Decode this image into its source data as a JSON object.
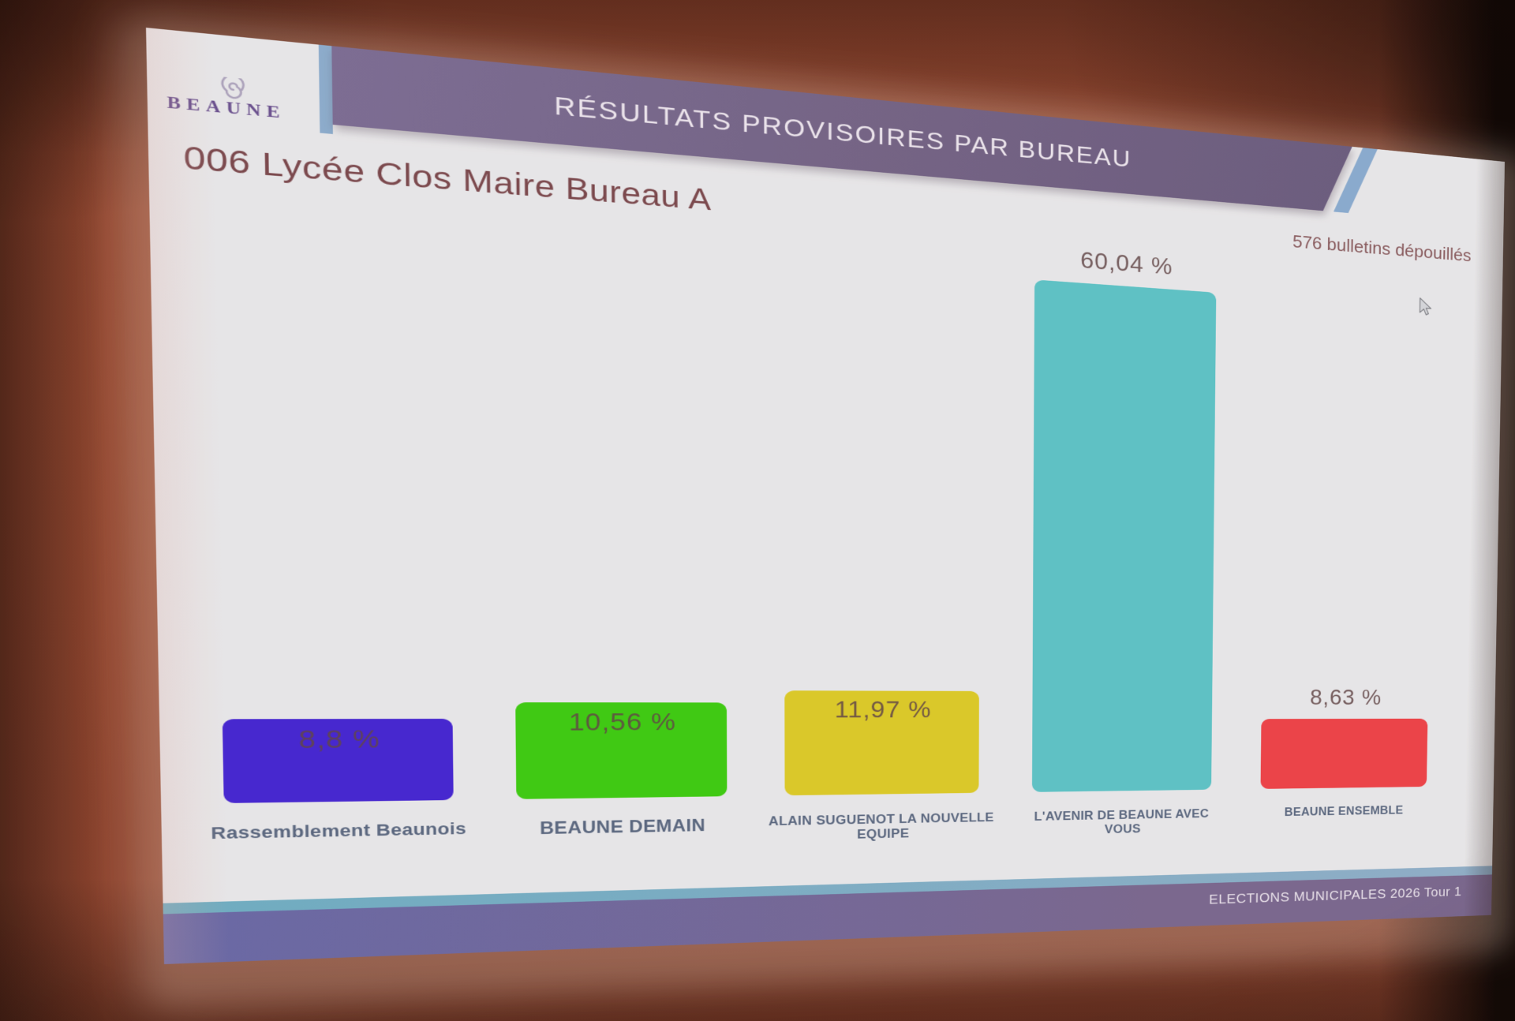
{
  "logo": {
    "text": "BEAUNE"
  },
  "header": {
    "title": "RÉSULTATS PROVISOIRES PAR BUREAU"
  },
  "subtitle": "006 Lycée Clos Maire Bureau A",
  "ballots_note": "576 bulletins dépouillés",
  "footer": {
    "text": "ELECTIONS MUNICIPALES 2026 Tour 1"
  },
  "icons": {
    "logo_swirl": "spiral-icon",
    "cursor": "mouse-pointer-icon"
  },
  "colors": {
    "header_band": "#786a92",
    "footer_band": "#7c6b94",
    "footer_band_left": "#6a6cac",
    "accent_stripe_left": "#8fb2d4",
    "accent_stripe_right": "#8cb0d6",
    "footer_stripe": "#6fb3c9",
    "logo_purple": "#6b5394",
    "subtitle_text": "#7c4a50",
    "ballots_text": "#8a5d61",
    "category_label": "#5a6a84",
    "value_label": "#62484a",
    "slide_background": "#edeff2",
    "title_text": "#f2edf6",
    "footer_text": "#efeaf4"
  },
  "chart_data": {
    "type": "bar",
    "title": "",
    "categories": [
      "Rassemblement Beaunois",
      "BEAUNE DEMAIN",
      "ALAIN SUGUENOT LA NOUVELLE EQUIPE",
      "L'AVENIR DE BEAUNE AVEC VOUS",
      "BEAUNE ENSEMBLE"
    ],
    "values": [
      8.8,
      10.56,
      11.97,
      60.04,
      8.63
    ],
    "value_labels": [
      "8,8 %",
      "10,56 %",
      "11,97 %",
      "60,04 %",
      "8,63 %"
    ],
    "bar_colors": [
      "#4527d8",
      "#3ed113",
      "#e0d02b",
      "#5ec9cd",
      "#f2454b"
    ],
    "value_label_placement": [
      "inside",
      "inside",
      "inside",
      "above",
      "above"
    ],
    "unit": "%",
    "ylim": [
      0,
      65
    ],
    "grid": false,
    "legend": false
  }
}
